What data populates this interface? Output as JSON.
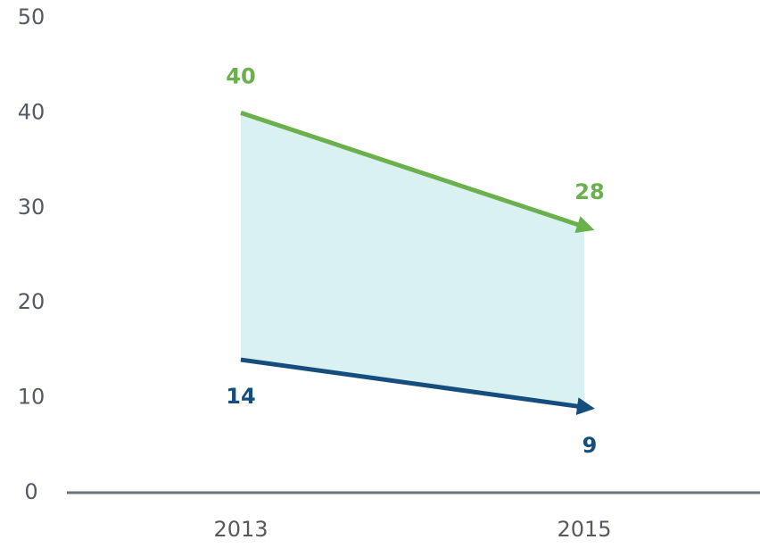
{
  "chart_data": {
    "type": "line",
    "categories": [
      "2013",
      "2015"
    ],
    "series": [
      {
        "color": "#6ab04c",
        "values": [
          40,
          28
        ]
      },
      {
        "color": "#144d7e",
        "values": [
          14,
          9
        ]
      }
    ],
    "fill_between_color": "#d9f1f1",
    "ylim": [
      0,
      50
    ],
    "yticks": [
      0,
      10,
      20,
      30,
      40,
      50
    ]
  }
}
